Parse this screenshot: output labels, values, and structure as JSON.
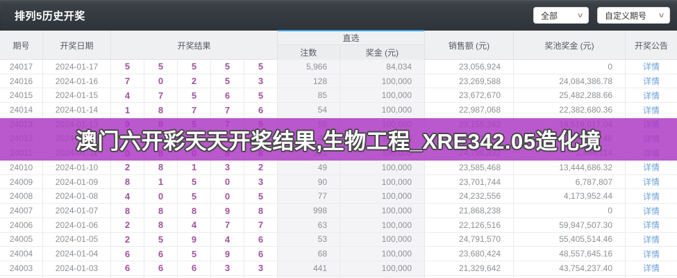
{
  "titlebar": {
    "title": "排列5历史开奖",
    "filter_all": "全部",
    "filter_custom": "自定义期号",
    "chevron": "∨"
  },
  "table": {
    "headers": {
      "issue": "期号",
      "date": "开奖日期",
      "result": "开奖结果",
      "zhixuan_group": "直选",
      "bets": "注数",
      "prize": "奖金 (元)",
      "sales": "销售额 (元)",
      "pool": "奖池奖金 (元)",
      "notice": "开奖公告"
    },
    "detail_label": "详情",
    "rows": [
      {
        "issue": "24017",
        "date": "2024-01-17",
        "results": [
          "5",
          "5",
          "5",
          "5",
          "5"
        ],
        "bets": "5,966",
        "prize": "84,034",
        "sales": "23,056,924",
        "pool": "0"
      },
      {
        "issue": "24016",
        "date": "2024-01-16",
        "results": [
          "7",
          "0",
          "2",
          "5",
          "3"
        ],
        "bets": "128",
        "prize": "100,000",
        "sales": "23,269,588",
        "pool": "24,084,386.78"
      },
      {
        "issue": "24015",
        "date": "2024-01-15",
        "results": [
          "4",
          "7",
          "5",
          "6",
          "5"
        ],
        "bets": "85",
        "prize": "100,000",
        "sales": "23,672,670",
        "pool": "25,482,288.66"
      },
      {
        "issue": "24014",
        "date": "2024-01-14",
        "results": [
          "1",
          "8",
          "7",
          "7",
          "6"
        ],
        "bets": "54",
        "prize": "100,000",
        "sales": "22,987,068",
        "pool": "22,382,680.36"
      },
      {
        "issue": "24013",
        "date": "2024-01-13",
        "results": [
          "9",
          "8",
          "5",
          "7",
          "5"
        ],
        "bets": "58",
        "prize": "100,000",
        "sales": "23,155,242",
        "pool": "16,519,017.04"
      },
      {
        "issue": "24012",
        "date": "2024-01-12",
        "results": [
          "0",
          "3",
          "5",
          "7",
          "4"
        ],
        "bets": "44",
        "prize": "100,000",
        "sales": "23,411,252",
        "pool": "10,131,948.46"
      },
      {
        "issue": "24011",
        "date": "2024-01-11",
        "results": [
          "0",
          "8",
          "0",
          "8",
          "8"
        ],
        "bets": "231",
        "prize": "100,000",
        "sales": "24,798,832",
        "pool": "2,496,114"
      },
      {
        "issue": "24010",
        "date": "2024-01-10",
        "results": [
          "2",
          "8",
          "1",
          "3",
          "2"
        ],
        "bets": "49",
        "prize": "100,000",
        "sales": "23,585,468",
        "pool": "13,444,686.32"
      },
      {
        "issue": "24009",
        "date": "2024-01-09",
        "results": [
          "8",
          "1",
          "5",
          "0",
          "3"
        ],
        "bets": "90",
        "prize": "100,000",
        "sales": "23,701,744",
        "pool": "6,787,807"
      },
      {
        "issue": "24008",
        "date": "2024-01-08",
        "results": [
          "4",
          "0",
          "5",
          "0",
          "5"
        ],
        "bets": "77",
        "prize": "100,000",
        "sales": "24,232,556",
        "pool": "4,173,952.44"
      },
      {
        "issue": "24007",
        "date": "2024-01-07",
        "results": [
          "8",
          "8",
          "8",
          "9",
          "8"
        ],
        "bets": "998",
        "prize": "100,000",
        "sales": "21,868,238",
        "pool": "0"
      },
      {
        "issue": "24006",
        "date": "2024-01-06",
        "results": [
          "2",
          "8",
          "4",
          "7",
          "7"
        ],
        "bets": "63",
        "prize": "100,000",
        "sales": "22,126,516",
        "pool": "59,947,507.30"
      },
      {
        "issue": "24005",
        "date": "2024-01-05",
        "results": [
          "2",
          "5",
          "9",
          "4",
          "6"
        ],
        "bets": "53",
        "prize": "100,000",
        "sales": "24,791,570",
        "pool": "55,405,514.46"
      },
      {
        "issue": "24004",
        "date": "2024-01-04",
        "results": [
          "6",
          "6",
          "5",
          "9",
          "6"
        ],
        "bets": "68",
        "prize": "100,000",
        "sales": "23,680,424",
        "pool": "48,557,645.16"
      },
      {
        "issue": "24003",
        "date": "2024-01-03",
        "results": [
          "6",
          "6",
          "6",
          "3",
          "3"
        ],
        "bets": "441",
        "prize": "100,000",
        "sales": "21,329,642",
        "pool": "43,754,237.40"
      }
    ]
  },
  "overlay": {
    "text": "澳门六开彩天天开奖结果,生物工程_XRE342.05造化境",
    "background_color": "#ad38c4",
    "text_color": "#ffffff",
    "outline_color": "#474747"
  },
  "colors": {
    "accent_blue": "#3e9ad9",
    "result_digit_purple": "#a1519e",
    "detail_link_blue": "#6ea3d8",
    "titlebar_dark": "#32383e"
  }
}
